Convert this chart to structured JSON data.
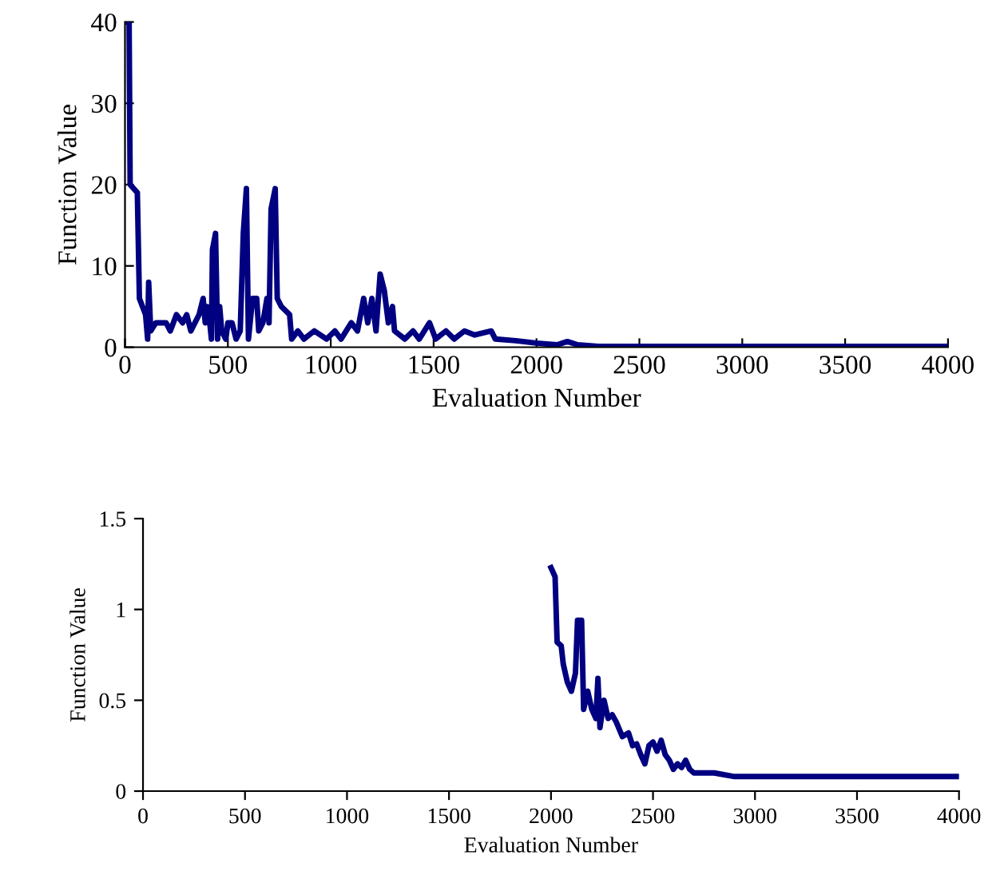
{
  "chart_data": [
    {
      "type": "line",
      "xlabel": "Evaluation Number",
      "ylabel": "Function Value",
      "xlim": [
        0,
        4000
      ],
      "xticks": [
        0,
        500,
        1000,
        1500,
        2000,
        2500,
        3000,
        3500,
        4000
      ],
      "ylim": [
        0,
        40
      ],
      "yticks": [
        0,
        10,
        20,
        30,
        40
      ],
      "grid": false,
      "legend": false,
      "marker": "none",
      "line_style": "solid",
      "series": [
        {
          "color": "#000080",
          "x": [
            0,
            20,
            25,
            60,
            70,
            100,
            110,
            115,
            125,
            150,
            200,
            220,
            250,
            280,
            300,
            320,
            360,
            380,
            390,
            400,
            410,
            420,
            425,
            440,
            450,
            460,
            470,
            490,
            500,
            520,
            540,
            560,
            575,
            590,
            600,
            620,
            640,
            650,
            670,
            690,
            700,
            710,
            730,
            740,
            760,
            800,
            810,
            840,
            870,
            920,
            980,
            1020,
            1050,
            1100,
            1130,
            1160,
            1180,
            1200,
            1220,
            1240,
            1260,
            1280,
            1300,
            1310,
            1360,
            1400,
            1430,
            1480,
            1510,
            1560,
            1600,
            1650,
            1700,
            1780,
            1800,
            1900,
            2000,
            2100,
            2150,
            2200,
            2300,
            4000
          ],
          "values": [
            40,
            40,
            20,
            19,
            6,
            4,
            1,
            8,
            2,
            3,
            3,
            2,
            4,
            3,
            4,
            2,
            4,
            6,
            3,
            5,
            3.5,
            1,
            12,
            14,
            1,
            5,
            2,
            1,
            3,
            3,
            1,
            2,
            14,
            19.5,
            1,
            6,
            6,
            2,
            3,
            6,
            3,
            17,
            19.5,
            6,
            5,
            4,
            1,
            2,
            1,
            2,
            1,
            2,
            1,
            3,
            2,
            6,
            3,
            6,
            2,
            9,
            7,
            3,
            5,
            2,
            1,
            2,
            1,
            3,
            1,
            2,
            1,
            2,
            1.5,
            2,
            1,
            0.8,
            0.5,
            0.3,
            0.7,
            0.3,
            0.1,
            0.1
          ]
        }
      ]
    },
    {
      "type": "line",
      "xlabel": "Evaluation Number",
      "ylabel": "Function Value",
      "xlim": [
        0,
        4000
      ],
      "xticks": [
        0,
        500,
        1000,
        1500,
        2000,
        2500,
        3000,
        3500,
        4000
      ],
      "ylim": [
        0,
        1.5
      ],
      "yticks": [
        0,
        0.5,
        1,
        1.5
      ],
      "grid": false,
      "legend": false,
      "marker": "none",
      "line_style": "solid",
      "series": [
        {
          "color": "#000080",
          "x": [
            2000,
            2020,
            2030,
            2050,
            2060,
            2080,
            2100,
            2120,
            2130,
            2150,
            2160,
            2180,
            2200,
            2220,
            2230,
            2240,
            2260,
            2280,
            2300,
            2320,
            2350,
            2380,
            2400,
            2420,
            2440,
            2460,
            2480,
            2500,
            2520,
            2540,
            2560,
            2580,
            2600,
            2620,
            2640,
            2660,
            2680,
            2700,
            2800,
            2900,
            4000
          ],
          "values": [
            1.23,
            1.18,
            0.82,
            0.8,
            0.7,
            0.6,
            0.55,
            0.65,
            0.94,
            0.94,
            0.45,
            0.55,
            0.45,
            0.4,
            0.62,
            0.35,
            0.5,
            0.4,
            0.42,
            0.38,
            0.3,
            0.32,
            0.25,
            0.26,
            0.2,
            0.15,
            0.25,
            0.27,
            0.22,
            0.28,
            0.2,
            0.17,
            0.12,
            0.15,
            0.13,
            0.17,
            0.12,
            0.1,
            0.1,
            0.08,
            0.08
          ]
        }
      ]
    }
  ]
}
